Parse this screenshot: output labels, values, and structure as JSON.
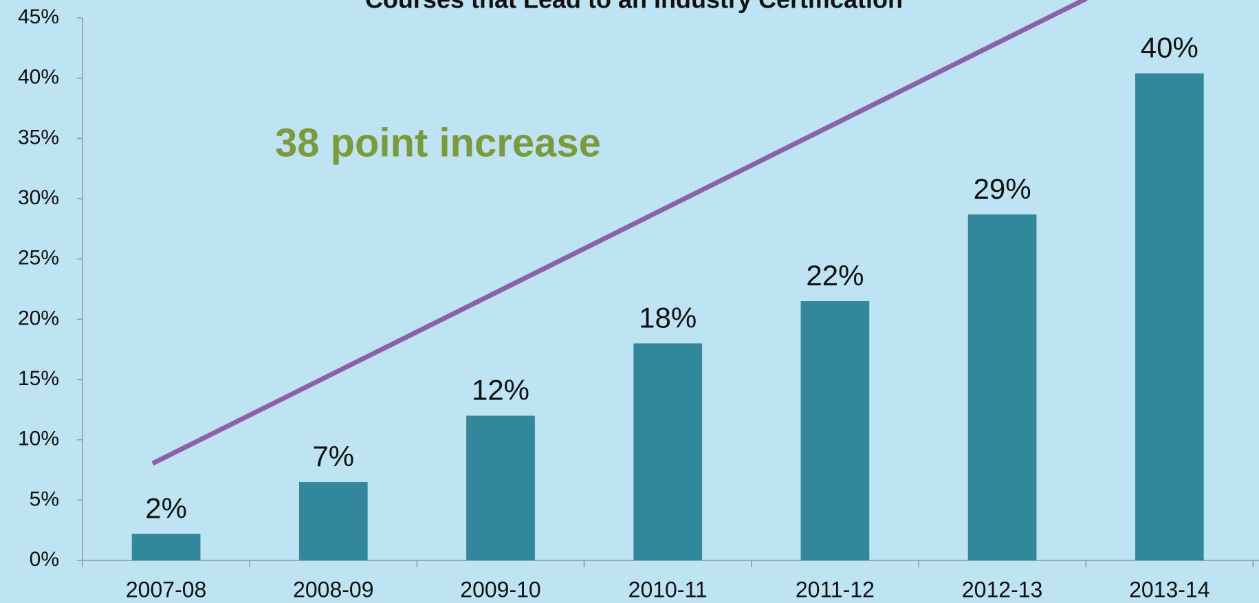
{
  "chart_data": {
    "type": "bar",
    "title": "Courses that Lead to an Industry Certification",
    "annotation": "38 point increase",
    "categories": [
      "2007-08",
      "2008-09",
      "2009-10",
      "2010-11",
      "2011-12",
      "2012-13",
      "2013-14"
    ],
    "values": [
      2.2,
      6.5,
      12,
      18,
      21.5,
      28.7,
      40.4
    ],
    "value_labels": [
      "2%",
      "7%",
      "12%",
      "18%",
      "22%",
      "29%",
      "40%"
    ],
    "color": "#33879b",
    "ylim": [
      0,
      45
    ],
    "yticks": [
      {
        "value": 0,
        "label": "0%"
      },
      {
        "value": 5,
        "label": "5%"
      },
      {
        "value": 10,
        "label": "10%"
      },
      {
        "value": 15,
        "label": "15%"
      },
      {
        "value": 20,
        "label": "20%"
      },
      {
        "value": 25,
        "label": "25%"
      },
      {
        "value": 30,
        "label": "30%"
      },
      {
        "value": 35,
        "label": "35%"
      },
      {
        "value": 40,
        "label": "40%"
      },
      {
        "value": 45,
        "label": "45%"
      }
    ],
    "grid": false
  }
}
